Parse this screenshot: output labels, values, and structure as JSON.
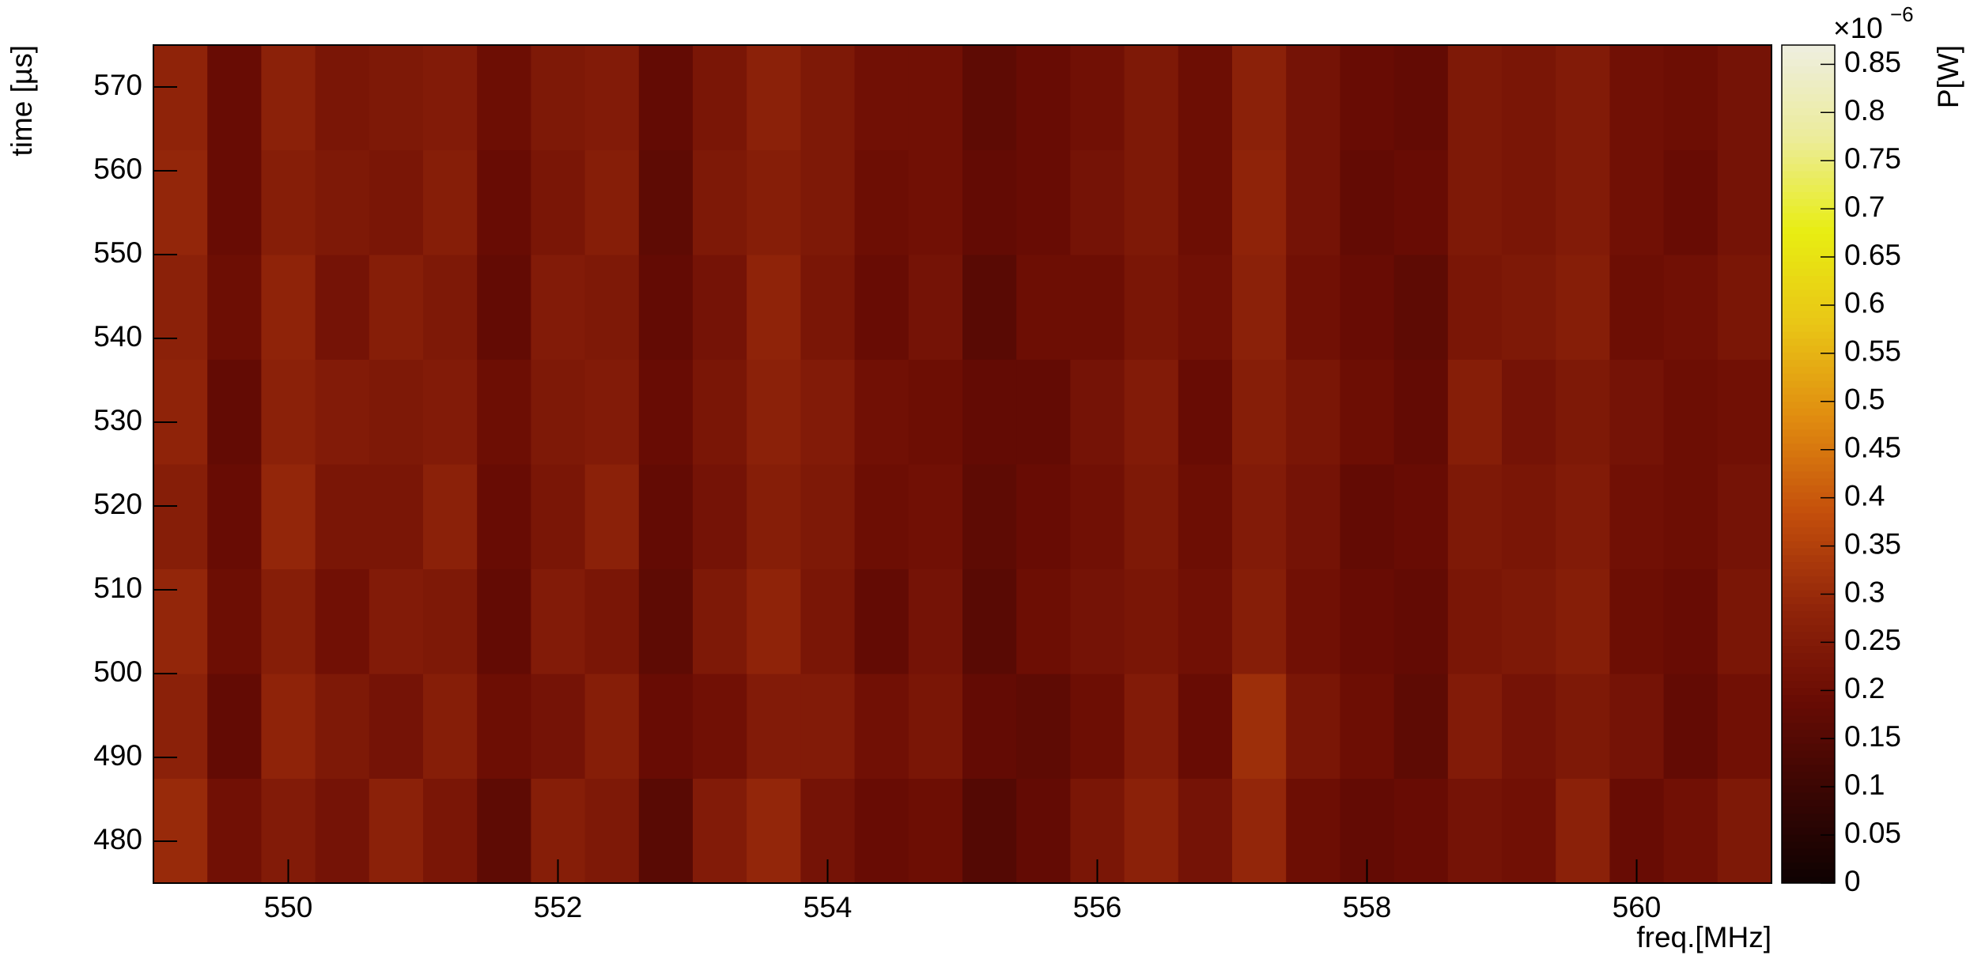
{
  "chart_data": {
    "type": "heatmap",
    "xlabel": "freq.[MHz]",
    "ylabel": "time [µs]",
    "zlabel": "P[W]",
    "zmultiplier": "×10",
    "zexponent": "−6",
    "xlim": [
      549,
      561
    ],
    "ylim": [
      475,
      575
    ],
    "zlim": [
      0,
      0.87
    ],
    "xticks": [
      550,
      552,
      554,
      556,
      558,
      560
    ],
    "yticks": [
      480,
      490,
      500,
      510,
      520,
      530,
      540,
      550,
      560,
      570
    ],
    "zticks": [
      0,
      0.05,
      0.1,
      0.15,
      0.2,
      0.25,
      0.3,
      0.35,
      0.4,
      0.45,
      0.5,
      0.55,
      0.6,
      0.65,
      0.7,
      0.75,
      0.8,
      0.85
    ],
    "colormap": [
      "#0e0202",
      "#3a0603",
      "#6a0c04",
      "#93260a",
      "#c5500c",
      "#e08c10",
      "#e9c516",
      "#e8ed12",
      "#ecec9a",
      "#eeeee0"
    ],
    "xbins": [
      549,
      549.4,
      549.8,
      550.2,
      550.6,
      551,
      551.4,
      551.8,
      552.2,
      552.6,
      553,
      553.4,
      553.8,
      554.2,
      554.6,
      555,
      555.4,
      555.8,
      556.2,
      556.6,
      557,
      557.4,
      557.8,
      558.2,
      558.6,
      559,
      559.4,
      559.8,
      560.2,
      560.6,
      561
    ],
    "ybins": [
      475,
      487.5,
      500,
      512.5,
      525,
      537.5,
      550,
      562.5,
      575
    ],
    "values": [
      [
        0.3,
        0.21,
        0.25,
        0.22,
        0.27,
        0.23,
        0.17,
        0.26,
        0.24,
        0.16,
        0.25,
        0.29,
        0.22,
        0.19,
        0.2,
        0.15,
        0.18,
        0.23,
        0.27,
        0.22,
        0.29,
        0.2,
        0.18,
        0.19,
        0.22,
        0.21,
        0.27,
        0.19,
        0.21,
        0.24
      ],
      [
        0.27,
        0.18,
        0.28,
        0.24,
        0.22,
        0.26,
        0.2,
        0.22,
        0.26,
        0.19,
        0.21,
        0.25,
        0.25,
        0.21,
        0.23,
        0.18,
        0.17,
        0.2,
        0.25,
        0.19,
        0.31,
        0.23,
        0.2,
        0.17,
        0.25,
        0.22,
        0.24,
        0.22,
        0.18,
        0.21
      ],
      [
        0.29,
        0.2,
        0.26,
        0.21,
        0.25,
        0.24,
        0.18,
        0.25,
        0.23,
        0.17,
        0.24,
        0.28,
        0.23,
        0.18,
        0.22,
        0.16,
        0.2,
        0.22,
        0.23,
        0.21,
        0.26,
        0.21,
        0.19,
        0.18,
        0.23,
        0.24,
        0.26,
        0.2,
        0.19,
        0.23
      ],
      [
        0.26,
        0.19,
        0.29,
        0.23,
        0.23,
        0.27,
        0.19,
        0.23,
        0.27,
        0.18,
        0.22,
        0.26,
        0.24,
        0.2,
        0.21,
        0.17,
        0.19,
        0.21,
        0.24,
        0.2,
        0.25,
        0.22,
        0.18,
        0.19,
        0.24,
        0.23,
        0.25,
        0.21,
        0.2,
        0.22
      ],
      [
        0.28,
        0.18,
        0.27,
        0.25,
        0.24,
        0.25,
        0.2,
        0.24,
        0.25,
        0.19,
        0.23,
        0.27,
        0.25,
        0.21,
        0.2,
        0.18,
        0.18,
        0.22,
        0.25,
        0.19,
        0.26,
        0.23,
        0.2,
        0.18,
        0.26,
        0.22,
        0.24,
        0.22,
        0.2,
        0.21
      ],
      [
        0.27,
        0.2,
        0.28,
        0.22,
        0.26,
        0.24,
        0.18,
        0.25,
        0.24,
        0.18,
        0.22,
        0.28,
        0.23,
        0.19,
        0.22,
        0.16,
        0.2,
        0.2,
        0.23,
        0.21,
        0.27,
        0.21,
        0.19,
        0.17,
        0.23,
        0.24,
        0.26,
        0.2,
        0.21,
        0.23
      ],
      [
        0.29,
        0.19,
        0.26,
        0.24,
        0.23,
        0.26,
        0.19,
        0.23,
        0.26,
        0.17,
        0.24,
        0.26,
        0.24,
        0.2,
        0.21,
        0.18,
        0.19,
        0.22,
        0.24,
        0.2,
        0.28,
        0.22,
        0.18,
        0.19,
        0.24,
        0.23,
        0.25,
        0.21,
        0.19,
        0.22
      ],
      [
        0.28,
        0.19,
        0.27,
        0.23,
        0.24,
        0.25,
        0.2,
        0.24,
        0.25,
        0.18,
        0.23,
        0.27,
        0.24,
        0.21,
        0.21,
        0.17,
        0.19,
        0.21,
        0.24,
        0.2,
        0.27,
        0.22,
        0.19,
        0.18,
        0.24,
        0.23,
        0.25,
        0.21,
        0.2,
        0.22
      ]
    ]
  }
}
